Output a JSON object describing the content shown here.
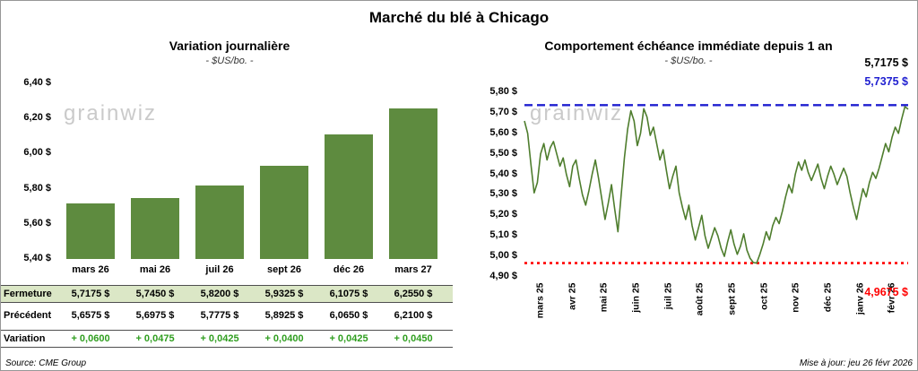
{
  "page": {
    "title": "Marché du blé à Chicago"
  },
  "watermark": "grainwiz",
  "footer": {
    "source": "Source: CME Group",
    "updated": "Mise à jour: jeu 26 févr 2026"
  },
  "table": {
    "positive_color": "#2f9e1f",
    "rows": [
      {
        "label": "Fermeture",
        "style": "highlight",
        "values": [
          "5,7175 $",
          "5,7450 $",
          "5,8200 $",
          "5,9325 $",
          "6,1075 $",
          "6,2550 $"
        ]
      },
      {
        "label": "Précédent",
        "style": "plain",
        "values": [
          "5,6575 $",
          "5,6975 $",
          "5,7775 $",
          "5,8925 $",
          "6,0650 $",
          "6,2100 $"
        ]
      },
      {
        "label": "Variation",
        "style": "variation",
        "values": [
          "+ 0,0600",
          "+ 0,0475",
          "+ 0,0425",
          "+ 0,0400",
          "+ 0,0425",
          "+ 0,0450"
        ]
      }
    ]
  },
  "chart_data": [
    {
      "type": "bar",
      "title": "Variation journalière",
      "subtitle": "- $US/bo. -",
      "categories": [
        "mars 26",
        "mai 26",
        "juil 26",
        "sept 26",
        "déc 26",
        "mars 27"
      ],
      "values": [
        5.7175,
        5.745,
        5.82,
        5.9325,
        6.1075,
        6.255
      ],
      "ylim": [
        5.4,
        6.4
      ],
      "yticks": [
        "6,40 $",
        "6,20 $",
        "6,00 $",
        "5,80 $",
        "5,60 $",
        "5,40 $"
      ],
      "bar_color": "#5e8b3f",
      "grid": false,
      "legend": "none"
    },
    {
      "type": "line",
      "title": "Comportement échéance immédiate depuis 1 an",
      "subtitle": "- $US/bo. -",
      "x_labels": [
        "mars 25",
        "avr 25",
        "mai 25",
        "juin 25",
        "juil 25",
        "août 25",
        "sept 25",
        "oct 25",
        "nov 25",
        "déc 25",
        "janv 26",
        "févr 26"
      ],
      "ylim": [
        4.9,
        5.8
      ],
      "yticks": [
        "5,80 $",
        "5,70 $",
        "5,60 $",
        "5,50 $",
        "5,40 $",
        "5,30 $",
        "5,20 $",
        "5,10 $",
        "5,00 $",
        "4,90 $"
      ],
      "line_color": "#4e7d2d",
      "last_value_label": "5,7175 $",
      "high_line": {
        "value": 5.7375,
        "label": "5,7375 $",
        "color": "#1f1fd0"
      },
      "low_line": {
        "value": 4.9675,
        "label": "4,9675 $",
        "color": "#ff0000"
      },
      "grid": false,
      "legend": "none",
      "values": [
        5.66,
        5.6,
        5.45,
        5.31,
        5.36,
        5.5,
        5.55,
        5.47,
        5.53,
        5.56,
        5.5,
        5.44,
        5.48,
        5.4,
        5.34,
        5.44,
        5.47,
        5.38,
        5.3,
        5.25,
        5.32,
        5.4,
        5.47,
        5.38,
        5.28,
        5.18,
        5.26,
        5.35,
        5.23,
        5.12,
        5.3,
        5.48,
        5.62,
        5.71,
        5.66,
        5.54,
        5.6,
        5.72,
        5.68,
        5.59,
        5.63,
        5.55,
        5.47,
        5.52,
        5.42,
        5.33,
        5.39,
        5.44,
        5.31,
        5.24,
        5.18,
        5.25,
        5.15,
        5.08,
        5.14,
        5.2,
        5.1,
        5.04,
        5.09,
        5.14,
        5.1,
        5.04,
        5.0,
        5.07,
        5.13,
        5.06,
        5.01,
        5.05,
        5.11,
        5.03,
        4.99,
        4.97,
        4.9675,
        5.01,
        5.06,
        5.12,
        5.08,
        5.15,
        5.19,
        5.16,
        5.22,
        5.29,
        5.35,
        5.31,
        5.4,
        5.46,
        5.42,
        5.47,
        5.41,
        5.37,
        5.41,
        5.45,
        5.38,
        5.33,
        5.39,
        5.44,
        5.4,
        5.35,
        5.39,
        5.43,
        5.39,
        5.31,
        5.24,
        5.18,
        5.26,
        5.33,
        5.29,
        5.36,
        5.41,
        5.38,
        5.43,
        5.49,
        5.55,
        5.51,
        5.58,
        5.63,
        5.6,
        5.67,
        5.73,
        5.7175
      ]
    }
  ]
}
